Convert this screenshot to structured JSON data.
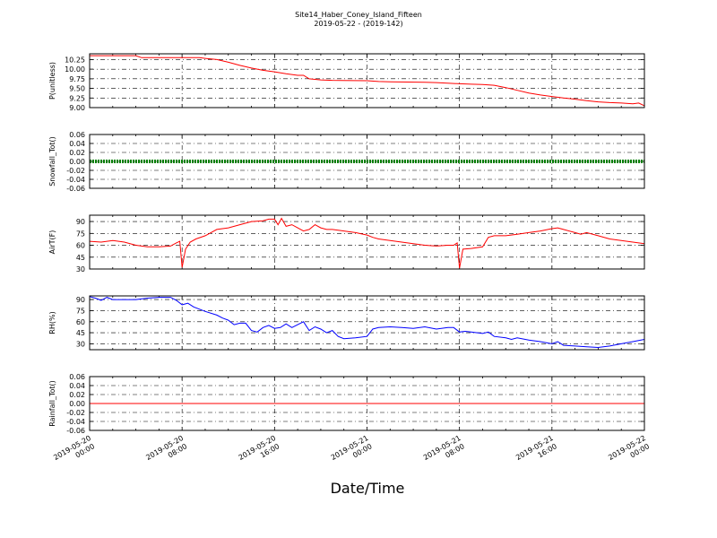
{
  "chart_data": {
    "title": "Site14_Haber_Coney_Island_Fifteen",
    "subtitle": "2019-05-22 - (2019-142)",
    "xlabel": "Date/Time",
    "type": "line",
    "grid": true,
    "x_ticks": [
      {
        "hours": 0,
        "label": "2019-05-20\n00:00"
      },
      {
        "hours": 8,
        "label": "2019-05-20\n08:00"
      },
      {
        "hours": 16,
        "label": "2019-05-20\n16:00"
      },
      {
        "hours": 24,
        "label": "2019-05-21\n00:00"
      },
      {
        "hours": 32,
        "label": "2019-05-21\n08:00"
      },
      {
        "hours": 40,
        "label": "2019-05-21\n16:00"
      },
      {
        "hours": 48,
        "label": "2019-05-22\n00:00"
      }
    ],
    "panels": [
      {
        "ylabel": "P(unitless)",
        "ylim": [
          9.0,
          10.4
        ],
        "yticks": [
          "9.00",
          "9.25",
          "9.50",
          "9.75",
          "10.00",
          "10.25"
        ],
        "color": "#ff0000",
        "style": "line",
        "series": [
          [
            0,
            10.35
          ],
          [
            4,
            10.35
          ],
          [
            4.5,
            10.3
          ],
          [
            8,
            10.3
          ],
          [
            9.5,
            10.3
          ],
          [
            10,
            10.28
          ],
          [
            11,
            10.25
          ],
          [
            12,
            10.18
          ],
          [
            13,
            10.1
          ],
          [
            14,
            10.03
          ],
          [
            15,
            9.97
          ],
          [
            16,
            9.93
          ],
          [
            17,
            9.88
          ],
          [
            18,
            9.84
          ],
          [
            18.5,
            9.84
          ],
          [
            19,
            9.75
          ],
          [
            20,
            9.72
          ],
          [
            21,
            9.71
          ],
          [
            24,
            9.7
          ],
          [
            25,
            9.68
          ],
          [
            26,
            9.67
          ],
          [
            29,
            9.66
          ],
          [
            30,
            9.65
          ],
          [
            32,
            9.62
          ],
          [
            33,
            9.61
          ],
          [
            34,
            9.6
          ],
          [
            35,
            9.58
          ],
          [
            36,
            9.52
          ],
          [
            37,
            9.45
          ],
          [
            38,
            9.38
          ],
          [
            39,
            9.33
          ],
          [
            40,
            9.29
          ],
          [
            41,
            9.25
          ],
          [
            42,
            9.22
          ],
          [
            43,
            9.18
          ],
          [
            44,
            9.15
          ],
          [
            45,
            9.13
          ],
          [
            46,
            9.12
          ],
          [
            47,
            9.1
          ],
          [
            47.5,
            9.12
          ],
          [
            48,
            9.05
          ]
        ]
      },
      {
        "ylabel": "Snowfall_Tot()",
        "ylim": [
          -0.06,
          0.06
        ],
        "yticks": [
          "-0.06",
          "-0.04",
          "-0.02",
          "0.00",
          "0.02",
          "0.04",
          "0.06"
        ],
        "color": "#008000",
        "style": "dots",
        "series": [
          [
            0,
            0
          ],
          [
            48,
            0
          ]
        ]
      },
      {
        "ylabel": "AirT(F)",
        "ylim": [
          30,
          98
        ],
        "yticks": [
          "30",
          "45",
          "60",
          "75",
          "90"
        ],
        "color": "#ff0000",
        "style": "line",
        "series": [
          [
            0,
            65
          ],
          [
            1,
            64
          ],
          [
            2,
            66
          ],
          [
            3,
            64
          ],
          [
            4,
            60
          ],
          [
            5,
            58
          ],
          [
            6,
            58
          ],
          [
            7,
            59
          ],
          [
            7.5,
            63
          ],
          [
            7.8,
            65
          ],
          [
            8,
            32
          ],
          [
            8.3,
            55
          ],
          [
            8.7,
            64
          ],
          [
            9.2,
            68
          ],
          [
            10,
            72
          ],
          [
            10.5,
            76
          ],
          [
            11,
            80
          ],
          [
            12,
            82
          ],
          [
            13,
            86
          ],
          [
            14,
            90
          ],
          [
            15,
            91
          ],
          [
            15.5,
            93
          ],
          [
            16,
            93
          ],
          [
            16.3,
            86
          ],
          [
            16.6,
            94
          ],
          [
            17,
            84
          ],
          [
            17.5,
            86
          ],
          [
            18,
            82
          ],
          [
            18.5,
            78
          ],
          [
            19,
            80
          ],
          [
            19.5,
            86
          ],
          [
            20,
            82
          ],
          [
            20.5,
            80
          ],
          [
            21,
            80
          ],
          [
            22,
            78
          ],
          [
            23,
            76
          ],
          [
            24,
            73
          ],
          [
            24.5,
            70
          ],
          [
            25,
            68
          ],
          [
            26,
            66
          ],
          [
            27,
            64
          ],
          [
            28,
            62
          ],
          [
            29,
            60
          ],
          [
            30,
            59
          ],
          [
            31,
            60
          ],
          [
            31.5,
            60
          ],
          [
            31.8,
            63
          ],
          [
            32,
            31
          ],
          [
            32.3,
            55
          ],
          [
            33,
            56
          ],
          [
            34,
            58
          ],
          [
            34.5,
            70
          ],
          [
            35,
            72
          ],
          [
            36,
            72
          ],
          [
            37,
            74
          ],
          [
            38,
            76
          ],
          [
            39,
            78
          ],
          [
            40,
            81
          ],
          [
            40.5,
            82
          ],
          [
            41,
            80
          ],
          [
            42,
            76
          ],
          [
            42.5,
            74
          ],
          [
            43,
            76
          ],
          [
            44,
            72
          ],
          [
            45,
            68
          ],
          [
            46,
            66
          ],
          [
            47,
            64
          ],
          [
            48,
            62
          ]
        ]
      },
      {
        "ylabel": "RH(%)",
        "ylim": [
          22,
          95
        ],
        "yticks": [
          "30",
          "45",
          "60",
          "75",
          "90"
        ],
        "color": "#0000ff",
        "style": "line",
        "series": [
          [
            0,
            94
          ],
          [
            0.5,
            92
          ],
          [
            1,
            89
          ],
          [
            1.5,
            93
          ],
          [
            2,
            90
          ],
          [
            4,
            90
          ],
          [
            5,
            92
          ],
          [
            6,
            93
          ],
          [
            7,
            93
          ],
          [
            7.5,
            89
          ],
          [
            8,
            83
          ],
          [
            8.5,
            85
          ],
          [
            9,
            80
          ],
          [
            10,
            74
          ],
          [
            11,
            69
          ],
          [
            11.5,
            65
          ],
          [
            12,
            62
          ],
          [
            12.5,
            56
          ],
          [
            13,
            58
          ],
          [
            13.5,
            58
          ],
          [
            14,
            48
          ],
          [
            14.5,
            46
          ],
          [
            15,
            52
          ],
          [
            15.5,
            55
          ],
          [
            16,
            51
          ],
          [
            16.5,
            52
          ],
          [
            17,
            57
          ],
          [
            17.5,
            52
          ],
          [
            18,
            56
          ],
          [
            18.5,
            60
          ],
          [
            19,
            48
          ],
          [
            19.5,
            53
          ],
          [
            20,
            50
          ],
          [
            20.5,
            45
          ],
          [
            21,
            48
          ],
          [
            21.5,
            40
          ],
          [
            22,
            37
          ],
          [
            23,
            38
          ],
          [
            24,
            40
          ],
          [
            24.5,
            50
          ],
          [
            25,
            52
          ],
          [
            26,
            53
          ],
          [
            27,
            52
          ],
          [
            28,
            51
          ],
          [
            29,
            53
          ],
          [
            30,
            50
          ],
          [
            31,
            52
          ],
          [
            31.5,
            52
          ],
          [
            32,
            46
          ],
          [
            32.5,
            47
          ],
          [
            33,
            46
          ],
          [
            34,
            44
          ],
          [
            34.5,
            46
          ],
          [
            35,
            40
          ],
          [
            36,
            38
          ],
          [
            36.5,
            36
          ],
          [
            37,
            38
          ],
          [
            38,
            35
          ],
          [
            39,
            33
          ],
          [
            40,
            30
          ],
          [
            40.5,
            33
          ],
          [
            41,
            28
          ],
          [
            42,
            27
          ],
          [
            43,
            26
          ],
          [
            44,
            25
          ],
          [
            45,
            27
          ],
          [
            46,
            30
          ],
          [
            47,
            33
          ],
          [
            48,
            36
          ]
        ]
      },
      {
        "ylabel": "Rainfall_Tot()",
        "ylim": [
          -0.06,
          0.06
        ],
        "yticks": [
          "-0.06",
          "-0.04",
          "-0.02",
          "0.00",
          "0.02",
          "0.04",
          "0.06"
        ],
        "color": "#ff0000",
        "style": "line",
        "series": [
          [
            0,
            0
          ],
          [
            48,
            0
          ]
        ]
      }
    ]
  }
}
